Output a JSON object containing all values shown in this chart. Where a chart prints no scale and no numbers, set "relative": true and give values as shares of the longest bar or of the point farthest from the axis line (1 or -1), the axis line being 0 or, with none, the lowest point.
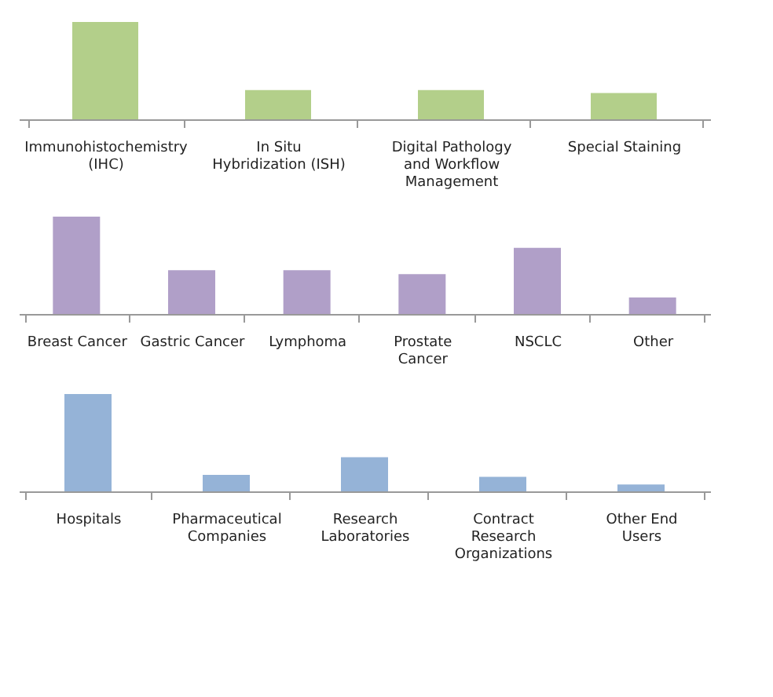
{
  "chart_data": [
    {
      "type": "bar",
      "relative": true,
      "categories": [
        "Immunohistochemistry (IHC)",
        "In Situ Hybridization (ISH)",
        "Digital Pathology and Workflow Management",
        "Special Staining"
      ],
      "series": [
        {
          "color": "#b3cf8a",
          "values": [
            1,
            0.3,
            0.3,
            0.27
          ]
        }
      ]
    },
    {
      "type": "bar",
      "relative": true,
      "categories": [
        "Breast Cancer",
        "Gastric Cancer",
        "Lymphoma",
        "Prostate Cancer",
        "NSCLC",
        "Other"
      ],
      "series": [
        {
          "color": "#b09fc8",
          "values": [
            1,
            0.45,
            0.45,
            0.41,
            0.68,
            0.17
          ]
        }
      ]
    },
    {
      "type": "bar",
      "relative": true,
      "categories": [
        "Hospitals",
        "Pharmaceutical Companies",
        "Research Laboratories",
        "Contract Research Organizations",
        "Other End Users"
      ],
      "series": [
        {
          "color": "#95b3d7",
          "values": [
            1,
            0.17,
            0.35,
            0.15,
            0.07
          ]
        }
      ]
    }
  ]
}
